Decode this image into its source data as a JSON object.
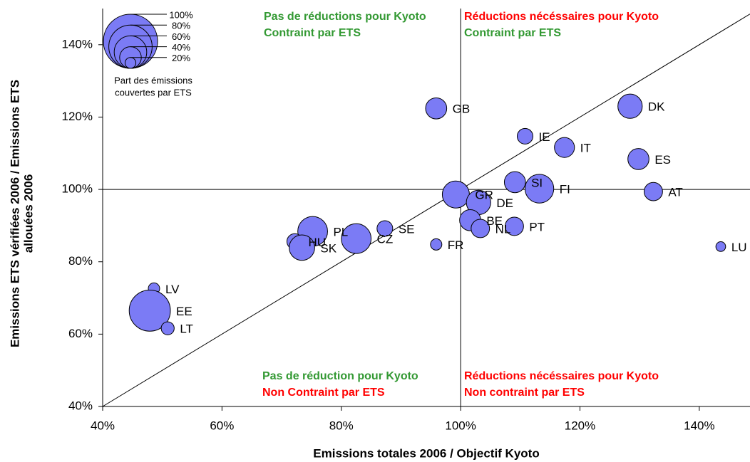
{
  "chart_data": {
    "type": "bubble",
    "x_label": "Emissions totales 2006 / Objectif Kyoto",
    "y_label": [
      "Emissions ETS vérifiées 2006 / Emissions ETS",
      "allouées 2006"
    ],
    "xlim": [
      40,
      148.5
    ],
    "ylim": [
      40,
      150
    ],
    "xticks": [
      {
        "value": 40,
        "label": "40%"
      },
      {
        "value": 60,
        "label": "60%"
      },
      {
        "value": 80,
        "label": "80%"
      },
      {
        "value": 100,
        "label": "100%"
      },
      {
        "value": 120,
        "label": "120%"
      },
      {
        "value": 140,
        "label": "140%"
      }
    ],
    "yticks": [
      {
        "value": 40,
        "label": "40%"
      },
      {
        "value": 60,
        "label": "60%"
      },
      {
        "value": 80,
        "label": "80%"
      },
      {
        "value": 100,
        "label": "100%"
      },
      {
        "value": 120,
        "label": "120%"
      },
      {
        "value": 140,
        "label": "140%"
      }
    ],
    "x_reference": 100,
    "y_reference": 100,
    "diagonal": true,
    "color": "#7b7bf5",
    "labels": [
      "GB",
      "DK",
      "IE",
      "IT",
      "ES",
      "SI",
      "FI",
      "AT",
      "GR",
      "DE",
      "BE",
      "NL",
      "PT",
      "FR",
      "LU",
      "SE",
      "CZ",
      "PL",
      "HU",
      "SK",
      "LV",
      "EE",
      "LT"
    ],
    "x": [
      95.9,
      128.4,
      110.8,
      117.4,
      129.8,
      109.1,
      113.2,
      132.3,
      99.2,
      103.0,
      101.6,
      103.3,
      109.0,
      95.9,
      143.6,
      87.3,
      82.5,
      75.2,
      72.2,
      73.4,
      48.6,
      47.9,
      50.9
    ],
    "y": [
      122.4,
      123.0,
      114.7,
      111.6,
      108.4,
      102.0,
      100.2,
      99.4,
      98.6,
      96.4,
      91.5,
      89.2,
      89.8,
      84.8,
      84.2,
      89.2,
      86.4,
      88.4,
      85.6,
      83.9,
      72.6,
      66.5,
      61.6
    ],
    "sizes": [
      39,
      45,
      29,
      37,
      39,
      39,
      53,
      34,
      50,
      45,
      39,
      34,
      34,
      21,
      18,
      29,
      55,
      55,
      29,
      47,
      21,
      76,
      24
    ],
    "size_legend": {
      "title": [
        "Part des émissions",
        "couvertes par ETS"
      ],
      "values": [
        {
          "value": 100,
          "label": "100%"
        },
        {
          "value": 80,
          "label": "80%"
        },
        {
          "value": 60,
          "label": "60%"
        },
        {
          "value": 40,
          "label": "40%"
        },
        {
          "value": 20,
          "label": "20%"
        }
      ]
    },
    "annotations": [
      {
        "text": "Pas de réductions pour Kyoto",
        "color": "#339933"
      },
      {
        "text": "Contraint par ETS",
        "color": "#339933"
      },
      {
        "text": "Réductions nécéssaires pour Kyoto",
        "color": "#ff0000"
      },
      {
        "text": "Contraint par ETS",
        "color": "#339933"
      },
      {
        "text": "Pas de réduction pour Kyoto",
        "color": "#339933"
      },
      {
        "text": "Non Contraint par ETS",
        "color": "#ff0000"
      },
      {
        "text": "Réductions nécéssaires pour Kyoto",
        "color": "#ff0000"
      },
      {
        "text": "Non contraint par ETS",
        "color": "#ff0000"
      }
    ]
  }
}
